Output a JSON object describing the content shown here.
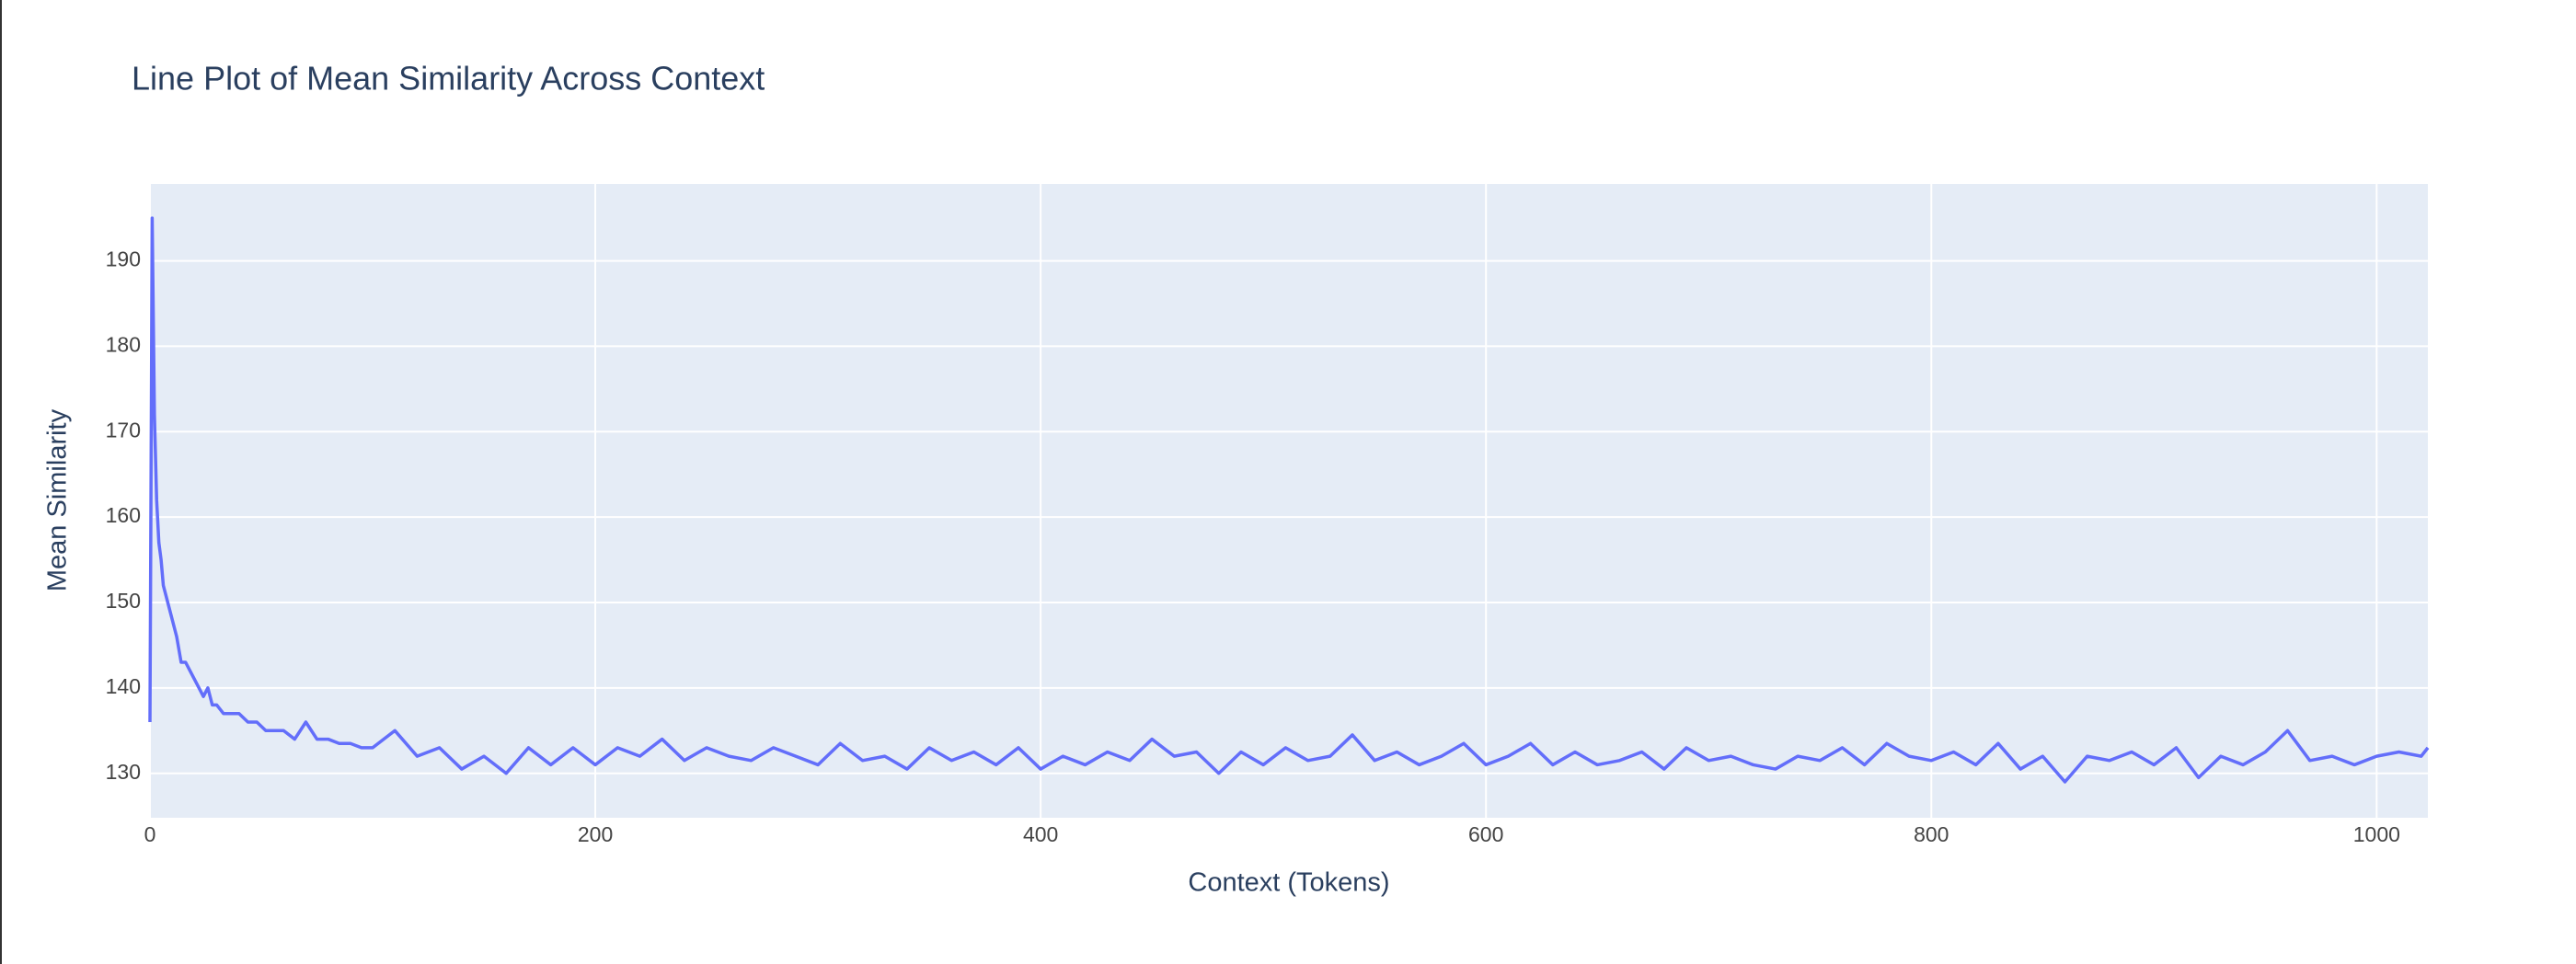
{
  "chart_data": {
    "type": "line",
    "title": "Line Plot of Mean Similarity Across Context",
    "x_label": "Context (Tokens)",
    "y_label": "Mean Similarity",
    "color": "#636efa",
    "x": [
      0,
      1,
      2,
      3,
      4,
      5,
      6,
      7,
      8,
      10,
      12,
      14,
      16,
      18,
      20,
      22,
      24,
      26,
      28,
      30,
      33,
      36,
      40,
      44,
      48,
      52,
      56,
      60,
      65,
      70,
      75,
      80,
      85,
      90,
      95,
      100,
      110,
      120,
      130,
      140,
      150,
      160,
      170,
      180,
      190,
      200,
      210,
      220,
      230,
      240,
      250,
      260,
      270,
      280,
      290,
      300,
      310,
      320,
      330,
      340,
      350,
      360,
      370,
      380,
      390,
      400,
      410,
      420,
      430,
      440,
      450,
      460,
      470,
      480,
      490,
      500,
      510,
      520,
      530,
      540,
      550,
      560,
      570,
      580,
      590,
      600,
      610,
      620,
      630,
      640,
      650,
      660,
      670,
      680,
      690,
      700,
      710,
      720,
      730,
      740,
      750,
      760,
      770,
      780,
      790,
      800,
      810,
      820,
      830,
      840,
      850,
      860,
      870,
      880,
      890,
      900,
      910,
      920,
      930,
      940,
      950,
      960,
      970,
      980,
      990,
      1000,
      1010,
      1020,
      1023
    ],
    "values": [
      136,
      195,
      172,
      162,
      157,
      155,
      152,
      151,
      150,
      148,
      146,
      143,
      143,
      142,
      141,
      140,
      139,
      140,
      138,
      138,
      137,
      137,
      137,
      136,
      136,
      135,
      135,
      135,
      134,
      136,
      134,
      134,
      133.5,
      133.5,
      133,
      133,
      135,
      132,
      133,
      130.5,
      132,
      130,
      133,
      131,
      133,
      131,
      133,
      132,
      134,
      131.5,
      133,
      132,
      131.5,
      133,
      132,
      131,
      133.5,
      131.5,
      132,
      130.5,
      133,
      131.5,
      132.5,
      131,
      133,
      130.5,
      132,
      131,
      132.5,
      131.5,
      134,
      132,
      132.5,
      130,
      132.5,
      131,
      133,
      131.5,
      132,
      134.5,
      131.5,
      132.5,
      131,
      132,
      133.5,
      131,
      132,
      133.5,
      131,
      132.5,
      131,
      131.5,
      132.5,
      130.5,
      133,
      131.5,
      132,
      131,
      130.5,
      132,
      131.5,
      133,
      131,
      133.5,
      132,
      131.5,
      132.5,
      131,
      133.5,
      130.5,
      132,
      129,
      132,
      131.5,
      132.5,
      131,
      133,
      129.5,
      132,
      131,
      132.5,
      135,
      131.5,
      132,
      131,
      132,
      132.5,
      132,
      133
    ],
    "xlim": [
      0,
      1023
    ],
    "ylim": [
      124.8,
      199
    ],
    "xticks": [
      0,
      200,
      400,
      600,
      800,
      1000
    ],
    "yticks": [
      130,
      140,
      150,
      160,
      170,
      180,
      190
    ],
    "grid": true
  }
}
